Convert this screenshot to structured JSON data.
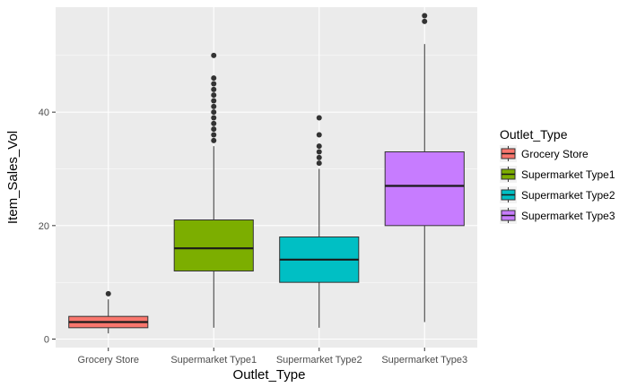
{
  "chart_data": {
    "type": "box",
    "xlabel": "Outlet_Type",
    "ylabel": "Item_Sales_Vol",
    "ylim": [
      -1.5,
      58.5
    ],
    "yticks": [
      0,
      20,
      40
    ],
    "grid": true,
    "legend": {
      "title": "Outlet_Type",
      "placement": "right"
    },
    "categories": [
      "Grocery Store",
      "Supermarket Type1",
      "Supermarket Type2",
      "Supermarket Type3"
    ],
    "series": [
      {
        "name": "Grocery Store",
        "color": "#F8766D",
        "lower_whisker": 1,
        "q1": 2,
        "median": 3,
        "q3": 4,
        "upper_whisker": 7,
        "outliers": [
          8
        ]
      },
      {
        "name": "Supermarket Type1",
        "color": "#7CAE00",
        "lower_whisker": 2,
        "q1": 12,
        "median": 16,
        "q3": 21,
        "upper_whisker": 34,
        "outliers": [
          35,
          36,
          37,
          38,
          39,
          40,
          41,
          42,
          43,
          44,
          45,
          46,
          50
        ]
      },
      {
        "name": "Supermarket Type2",
        "color": "#00BFC4",
        "lower_whisker": 2,
        "q1": 10,
        "median": 14,
        "q3": 18,
        "upper_whisker": 30,
        "outliers": [
          31,
          32,
          33,
          34,
          36,
          39
        ]
      },
      {
        "name": "Supermarket Type3",
        "color": "#C77CFF",
        "lower_whisker": 3,
        "q1": 20,
        "median": 27,
        "q3": 33,
        "upper_whisker": 52,
        "outliers": [
          56,
          57
        ]
      }
    ]
  }
}
